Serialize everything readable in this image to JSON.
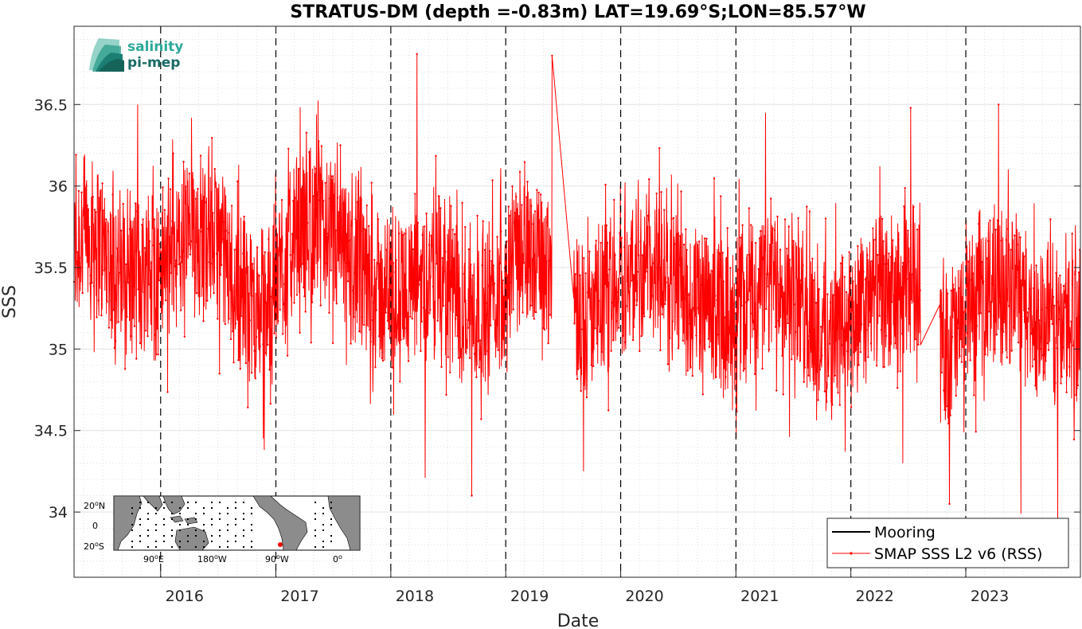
{
  "chart_data": {
    "type": "line",
    "title": "STRATUS-DM (depth =-0.83m) LAT=19.69°S;LON=85.57°W",
    "xlabel": "Date",
    "ylabel": "SSS",
    "xlim": [
      "2015-04-01",
      "2023-12-31"
    ],
    "ylim": [
      33.6,
      36.98
    ],
    "x_ticks": [
      "2016",
      "2017",
      "2018",
      "2019",
      "2020",
      "2021",
      "2022",
      "2023"
    ],
    "x_tick_dates": [
      "2016-01-01",
      "2017-01-01",
      "2018-01-01",
      "2019-01-01",
      "2020-01-01",
      "2021-01-01",
      "2022-01-01",
      "2023-01-01"
    ],
    "y_ticks": [
      34,
      34.5,
      35,
      35.5,
      36,
      36.5
    ],
    "grid": true,
    "legend_position": "bottom-right",
    "series": [
      {
        "name": "Mooring",
        "color": "#000000",
        "values": []
      },
      {
        "name": "SMAP SSS L2 v6 (RSS)",
        "color": "#ff0000",
        "marker": "dot",
        "values": [
          [
            "2015-04-01",
            35.6
          ],
          [
            "2015-06-01",
            35.75
          ],
          [
            "2015-08-01",
            35.5
          ],
          [
            "2015-10-01",
            35.45
          ],
          [
            "2015-12-01",
            35.5
          ],
          [
            "2016-02-01",
            35.55
          ],
          [
            "2016-04-01",
            35.7
          ],
          [
            "2016-06-01",
            35.75
          ],
          [
            "2016-08-01",
            35.5
          ],
          [
            "2016-10-01",
            35.3
          ],
          [
            "2016-12-01",
            35.25
          ],
          [
            "2017-02-01",
            35.6
          ],
          [
            "2017-04-01",
            35.75
          ],
          [
            "2017-06-01",
            35.75
          ],
          [
            "2017-08-01",
            35.55
          ],
          [
            "2017-10-01",
            35.45
          ],
          [
            "2017-12-01",
            35.35
          ],
          [
            "2018-02-01",
            35.35
          ],
          [
            "2018-04-01",
            35.45
          ],
          [
            "2018-06-01",
            35.5
          ],
          [
            "2018-08-01",
            35.3
          ],
          [
            "2018-10-01",
            35.25
          ],
          [
            "2018-12-01",
            35.35
          ],
          [
            "2019-02-01",
            35.55
          ],
          [
            "2019-04-01",
            35.6
          ],
          [
            "2019-05-28",
            35.5
          ],
          [
            "2019-08-01",
            35.3
          ],
          [
            "2019-10-01",
            35.2
          ],
          [
            "2019-12-01",
            35.4
          ],
          [
            "2020-02-01",
            35.45
          ],
          [
            "2020-04-01",
            35.5
          ],
          [
            "2020-06-01",
            35.45
          ],
          [
            "2020-08-01",
            35.3
          ],
          [
            "2020-10-01",
            35.25
          ],
          [
            "2020-12-01",
            35.25
          ],
          [
            "2021-02-01",
            35.3
          ],
          [
            "2021-04-01",
            35.4
          ],
          [
            "2021-06-01",
            35.45
          ],
          [
            "2021-08-01",
            35.25
          ],
          [
            "2021-10-01",
            35.05
          ],
          [
            "2021-12-01",
            35.1
          ],
          [
            "2022-02-01",
            35.2
          ],
          [
            "2022-04-01",
            35.35
          ],
          [
            "2022-06-01",
            35.3
          ],
          [
            "2022-08-01",
            35.5
          ],
          [
            "2022-10-01",
            35.0
          ],
          [
            "2022-12-01",
            35.1
          ],
          [
            "2023-02-01",
            35.3
          ],
          [
            "2023-04-01",
            35.4
          ],
          [
            "2023-06-01",
            35.35
          ],
          [
            "2023-08-01",
            35.2
          ],
          [
            "2023-10-01",
            35.15
          ],
          [
            "2023-12-31",
            35.2
          ]
        ],
        "peaks": [
          [
            "2015-10-20",
            36.5
          ],
          [
            "2016-02-10",
            36.2
          ],
          [
            "2016-11-25",
            34.38
          ],
          [
            "2017-05-10",
            36.44
          ],
          [
            "2018-03-25",
            36.81
          ],
          [
            "2018-04-20",
            34.21
          ],
          [
            "2018-09-15",
            34.1
          ],
          [
            "2019-06-20",
            36.8
          ],
          [
            "2019-09-05",
            34.25
          ],
          [
            "2020-06-10",
            36.07
          ],
          [
            "2021-04-05",
            36.45
          ],
          [
            "2021-06-20",
            34.46
          ],
          [
            "2022-07-10",
            36.48
          ],
          [
            "2022-06-15",
            34.3
          ],
          [
            "2022-11-10",
            34.05
          ],
          [
            "2023-04-15",
            36.5
          ],
          [
            "2023-06-25",
            33.99
          ],
          [
            "2023-10-20",
            33.95
          ]
        ]
      }
    ]
  },
  "logo": {
    "line1": "salinity",
    "line2": "pi-mep"
  },
  "inset_map": {
    "lat_labels": [
      "20",
      "N",
      "0",
      "20",
      "S"
    ],
    "lon_labels": [
      "90",
      "E",
      "180",
      "W",
      "90",
      "W",
      "0"
    ],
    "degree_symbol": "o",
    "marker_color": "#ff0000"
  }
}
